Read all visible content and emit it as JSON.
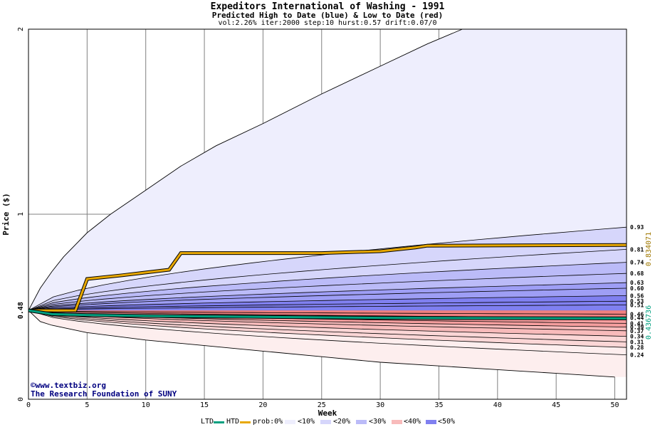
{
  "title": "Expeditors International of Washing - 1991",
  "subtitle": "Predicted High to Date (blue) &  Low to Date (red)",
  "params": "vol:2.26% iter:2000 step:10 hurst:0.57 drift:0.07/0",
  "credit": {
    "url": "www.textbiz.org",
    "org": "The Research Foundation of SUNY",
    "logo_icon": "copyright-icon"
  },
  "colors": {
    "plot_bg": "#ffffff",
    "grid": "#808080",
    "axis": "#000000",
    "ltd_line": "#00a080",
    "htd_line": "#e8a800",
    "right_value_left": "#a07800",
    "right_value_right": "#00a080",
    "blue_bands": [
      "#eeeefd",
      "#d6d6fb",
      "#bbbbf8",
      "#9e9ef5",
      "#8080f0"
    ],
    "red_bands": [
      "#fdeeee",
      "#fbd6d6",
      "#f8bbbb",
      "#f59e9e",
      "#f08080"
    ]
  },
  "legend": {
    "ltd": "LTD",
    "htd": "HTD",
    "prob0": "prob:0%",
    "b10": "<10%",
    "b20": "<20%",
    "b30": "<30%",
    "b40": "<40%",
    "b50": "<50%"
  },
  "chart_data": {
    "type": "area",
    "title": "Expeditors International of Washing - 1991",
    "subtitle": "Predicted High to Date (blue) &  Low to Date (red)",
    "xlabel": "Week",
    "ylabel": "Price ($)",
    "xlim": [
      0,
      51
    ],
    "ylim": [
      0,
      2
    ],
    "x_ticks": [
      0,
      5,
      10,
      15,
      20,
      25,
      30,
      35,
      40,
      45,
      50
    ],
    "y_ticks": [
      0,
      1,
      2
    ],
    "start_price_label": "0.48",
    "start_price": 0.48,
    "grid": true,
    "legend_position": "bottom",
    "right_labels": [
      "0.93",
      "0.81",
      "0.74",
      "0.68",
      "0.63",
      "0.60",
      "0.56",
      "0.53",
      "0.51",
      "0.46",
      "0.44",
      "0.41",
      "0.39",
      "0.37",
      "0.34",
      "0.31",
      "0.28",
      "0.24"
    ],
    "right_values": [
      {
        "label": "0.834071",
        "series": "HTD"
      },
      {
        "label": "0.436736",
        "series": "LTD"
      }
    ],
    "high_envelope": {
      "x": [
        0,
        1,
        2,
        3,
        5,
        7,
        10,
        13,
        16,
        20,
        25,
        30,
        34,
        37
      ],
      "y": [
        0.48,
        0.6,
        0.69,
        0.77,
        0.9,
        1.0,
        1.13,
        1.26,
        1.37,
        1.49,
        1.65,
        1.8,
        1.92,
        2.0
      ]
    },
    "high_quantile_lines": [
      {
        "end": 0.93
      },
      {
        "end": 0.81
      },
      {
        "end": 0.74
      },
      {
        "end": 0.68
      },
      {
        "end": 0.63
      },
      {
        "end": 0.6
      },
      {
        "end": 0.56
      },
      {
        "end": 0.53
      },
      {
        "end": 0.51
      }
    ],
    "low_quantile_lines": [
      {
        "end": 0.46
      },
      {
        "end": 0.44
      },
      {
        "end": 0.41
      },
      {
        "end": 0.39
      },
      {
        "end": 0.37
      },
      {
        "end": 0.34
      },
      {
        "end": 0.31
      },
      {
        "end": 0.28
      },
      {
        "end": 0.24
      }
    ],
    "low_envelope": {
      "x": [
        0,
        1,
        2,
        5,
        10,
        15,
        20,
        25,
        30,
        35,
        40,
        45,
        50
      ],
      "y": [
        0.48,
        0.42,
        0.4,
        0.36,
        0.32,
        0.29,
        0.26,
        0.23,
        0.2,
        0.18,
        0.16,
        0.14,
        0.12
      ]
    },
    "series": [
      {
        "name": "HTD",
        "x": [
          0,
          4,
          5,
          8,
          12,
          13,
          25,
          30,
          33,
          34,
          51
        ],
        "y": [
          0.48,
          0.48,
          0.65,
          0.67,
          0.7,
          0.79,
          0.79,
          0.8,
          0.82,
          0.83,
          0.834
        ]
      },
      {
        "name": "LTD",
        "x": [
          0,
          1,
          2,
          5,
          10,
          20,
          30,
          51
        ],
        "y": [
          0.48,
          0.47,
          0.46,
          0.455,
          0.45,
          0.445,
          0.44,
          0.437
        ]
      }
    ]
  }
}
